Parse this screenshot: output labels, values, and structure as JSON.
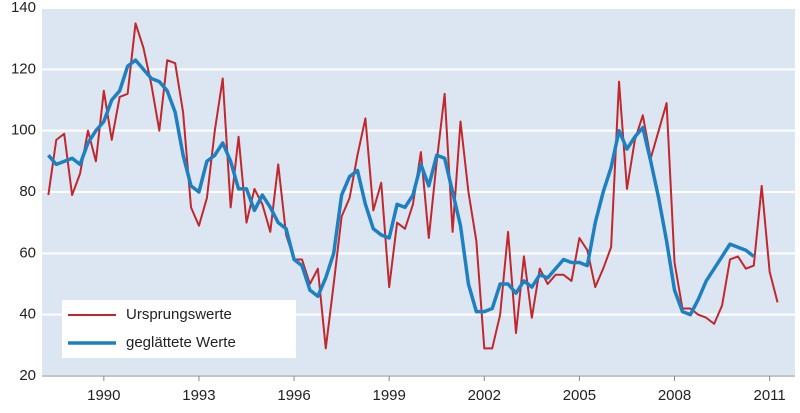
{
  "chart_data": {
    "type": "line",
    "x": [
      1988.25,
      1988.5,
      1988.75,
      1989,
      1989.25,
      1989.5,
      1989.75,
      1990,
      1990.25,
      1990.5,
      1990.75,
      1991,
      1991.25,
      1991.5,
      1991.75,
      1992,
      1992.25,
      1992.5,
      1992.75,
      1993,
      1993.25,
      1993.5,
      1993.75,
      1994,
      1994.25,
      1994.5,
      1994.75,
      1995,
      1995.25,
      1995.5,
      1995.75,
      1996,
      1996.25,
      1996.5,
      1996.75,
      1997,
      1997.25,
      1997.5,
      1997.75,
      1998,
      1998.25,
      1998.5,
      1998.75,
      1999,
      1999.25,
      1999.5,
      1999.75,
      2000,
      2000.25,
      2000.5,
      2000.75,
      2001,
      2001.25,
      2001.5,
      2001.75,
      2002,
      2002.25,
      2002.5,
      2002.75,
      2003,
      2003.25,
      2003.5,
      2003.75,
      2004,
      2004.25,
      2004.5,
      2004.75,
      2005,
      2005.25,
      2005.5,
      2005.75,
      2006,
      2006.25,
      2006.5,
      2006.75,
      2007,
      2007.25,
      2007.5,
      2007.75,
      2008,
      2008.25,
      2008.5,
      2008.75,
      2009,
      2009.25,
      2009.5,
      2009.75,
      2010,
      2010.25,
      2010.5,
      2010.75,
      2011,
      2011.25
    ],
    "series": [
      {
        "name": "Ursprungswerte",
        "color": "#c0282d",
        "width": 2,
        "values": [
          79,
          97,
          99,
          79,
          86,
          100,
          90,
          113,
          97,
          111,
          112,
          135,
          127,
          115,
          100,
          123,
          122,
          106,
          75,
          69,
          78,
          100,
          117,
          75,
          98,
          70,
          81,
          76,
          67,
          89,
          66,
          58,
          58,
          50,
          55,
          29,
          50,
          72,
          78,
          92,
          104,
          74,
          83,
          49,
          70,
          68,
          76,
          93,
          65,
          90,
          112,
          67,
          103,
          80,
          64,
          29,
          29,
          40,
          67,
          34,
          59,
          39,
          55,
          50,
          53,
          53,
          51,
          65,
          61,
          49,
          55,
          62,
          116,
          81,
          97,
          105,
          91,
          100,
          109,
          57,
          42,
          42,
          40,
          39,
          37,
          43,
          58,
          59,
          55,
          56,
          82,
          54,
          44
        ]
      },
      {
        "name": "geglättete Werte",
        "color": "#1f80c0",
        "width": 3.5,
        "values": [
          92,
          89,
          90,
          91,
          89,
          96,
          100,
          103,
          110,
          113,
          121,
          123,
          120,
          117,
          116,
          113,
          106,
          92,
          82,
          80,
          90,
          92,
          96,
          90,
          81,
          81,
          74,
          79,
          75,
          70,
          68,
          58,
          56,
          48,
          46,
          52,
          60,
          79,
          85,
          87,
          76,
          68,
          66,
          65,
          76,
          75,
          79,
          89,
          82,
          92,
          91,
          80,
          69,
          50,
          41,
          41,
          42,
          50,
          50,
          47,
          51,
          49,
          53,
          52,
          55,
          58,
          57,
          57,
          56,
          70,
          80,
          88,
          100,
          94,
          98,
          101,
          90,
          78,
          64,
          48,
          41,
          40,
          45,
          51,
          55,
          59,
          63,
          62,
          61,
          59,
          null,
          null,
          null
        ]
      }
    ],
    "xlim": [
      1988.05,
      2011.8
    ],
    "xticks": [
      1990,
      1993,
      1996,
      1999,
      2002,
      2005,
      2008,
      2011
    ],
    "ylim": [
      20,
      140
    ],
    "yticks": [
      20,
      40,
      60,
      80,
      100,
      120,
      140
    ],
    "grid": true,
    "legend": "lower left"
  }
}
